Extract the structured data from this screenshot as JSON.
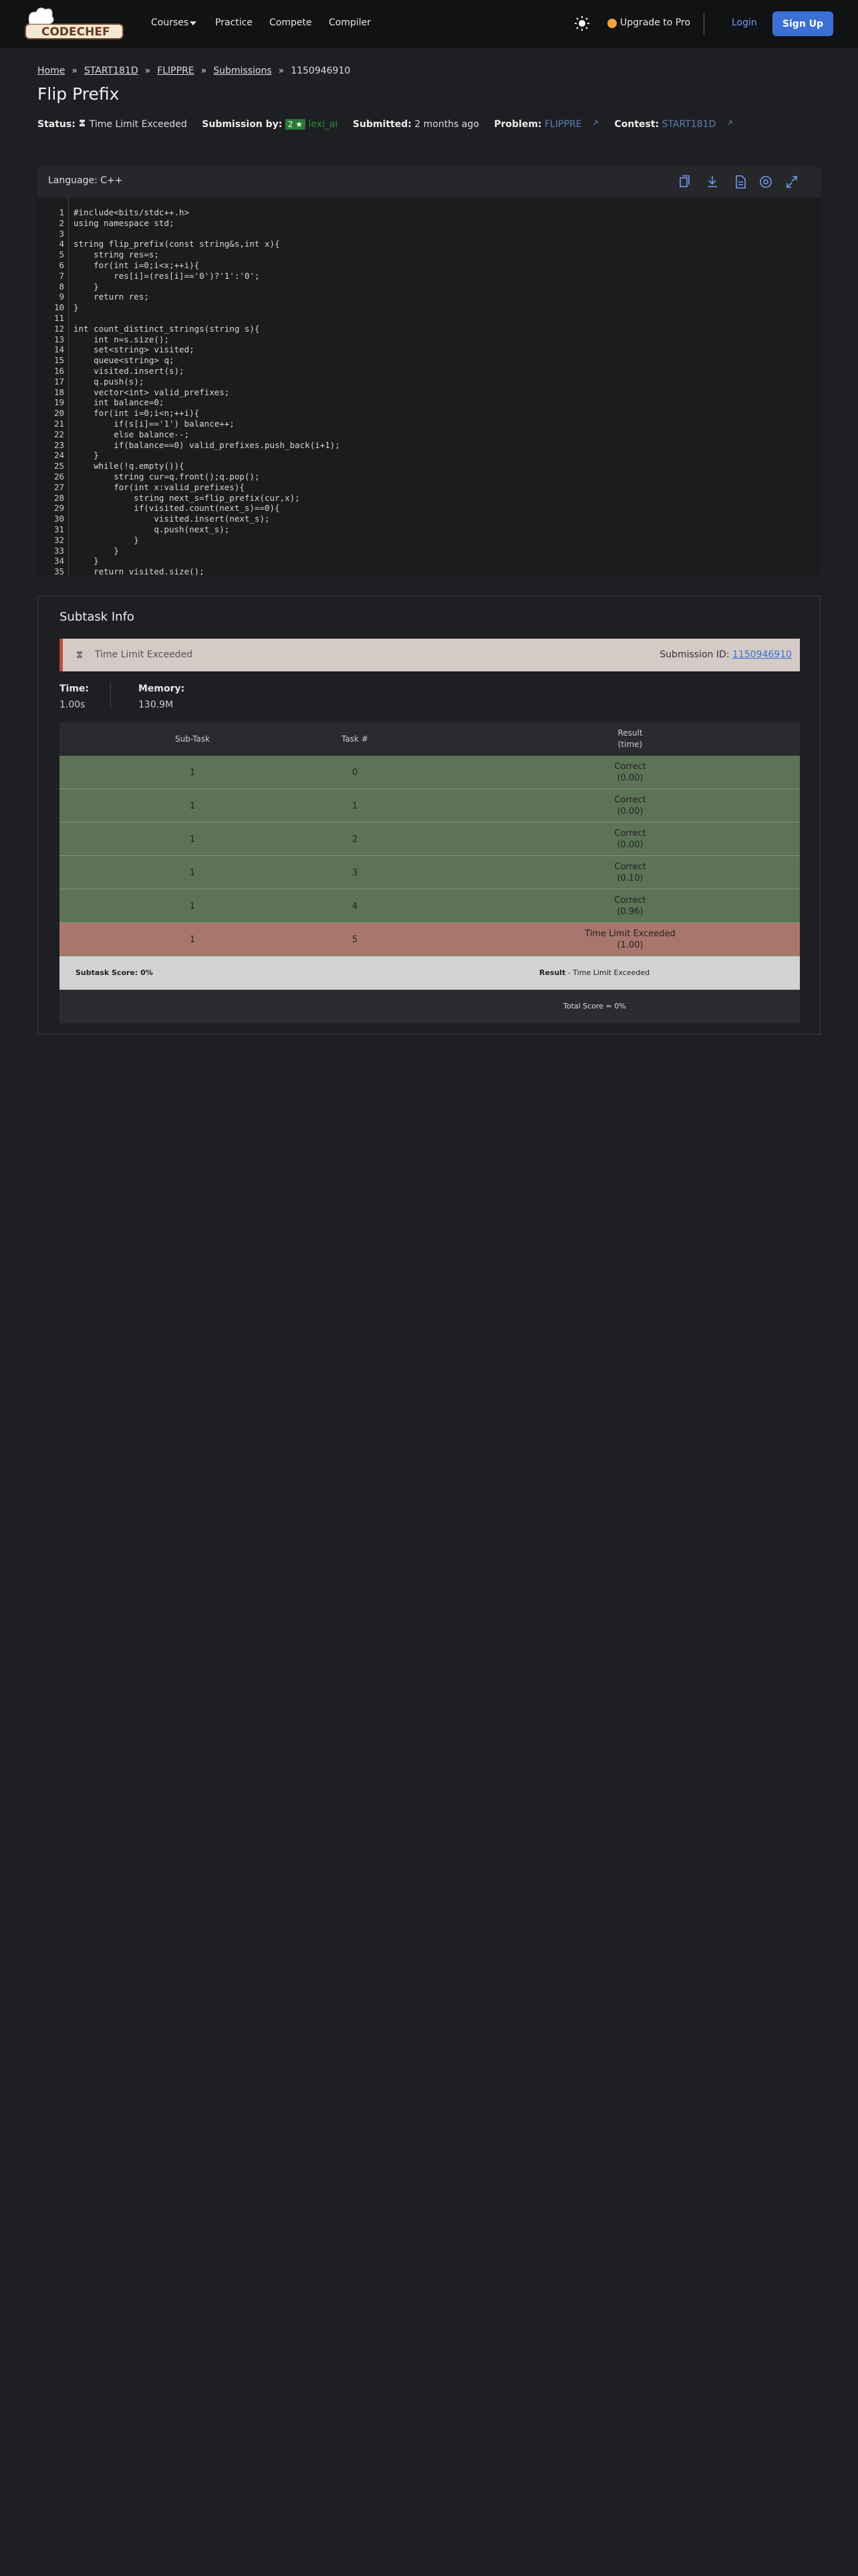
{
  "header": {
    "brand": "CODECHEF",
    "nav": [
      "Courses",
      "Practice",
      "Compete",
      "Compiler"
    ],
    "upgrade": "Upgrade to Pro",
    "login": "Login",
    "signup": "Sign Up"
  },
  "breadcrumb": {
    "items": [
      "Home",
      "START181D",
      "FLIPPRE",
      "Submissions",
      "1150946910"
    ],
    "separator": "»"
  },
  "title": "Flip Prefix",
  "meta": {
    "status_label": "Status:",
    "status": "Time Limit Exceeded",
    "by_label": "Submission by:",
    "rating": "2 ★",
    "user": "lexi_ai",
    "submitted_label": "Submitted:",
    "submitted": "2 months ago",
    "problem_label": "Problem:",
    "problem": "FLIPPRE",
    "contest_label": "Contest:",
    "contest": "START181D"
  },
  "code": {
    "language": "Language: C++",
    "lines": [
      {
        "n": "1",
        "text": "#include<bits/stdc++.h>"
      },
      {
        "n": "2",
        "text": "using namespace std;"
      },
      {
        "n": "3",
        "text": ""
      },
      {
        "n": "4",
        "text": "string flip_prefix(const string&s,int x){"
      },
      {
        "n": "5",
        "text": "    string res=s;"
      },
      {
        "n": "6",
        "text": "    for(int i=0;i<x;++i){"
      },
      {
        "n": "7",
        "text": "        res[i]=(res[i]=='0')?'1':'0';"
      },
      {
        "n": "8",
        "text": "    }"
      },
      {
        "n": "9",
        "text": "    return res;"
      },
      {
        "n": "10",
        "text": "}"
      },
      {
        "n": "11",
        "text": ""
      },
      {
        "n": "12",
        "text": "int count_distinct_strings(string s){"
      },
      {
        "n": "13",
        "text": "    int n=s.size();"
      },
      {
        "n": "14",
        "text": "    set<string> visited;"
      },
      {
        "n": "15",
        "text": "    queue<string> q;"
      },
      {
        "n": "16",
        "text": "    visited.insert(s);"
      },
      {
        "n": "17",
        "text": "    q.push(s);"
      },
      {
        "n": "18",
        "text": "    vector<int> valid_prefixes;"
      },
      {
        "n": "19",
        "text": "    int balance=0;"
      },
      {
        "n": "20",
        "text": "    for(int i=0;i<n;++i){"
      },
      {
        "n": "21",
        "text": "        if(s[i]=='1') balance++;"
      },
      {
        "n": "22",
        "text": "        else balance--;"
      },
      {
        "n": "23",
        "text": "        if(balance==0) valid_prefixes.push_back(i+1);"
      },
      {
        "n": "24",
        "text": "    }"
      },
      {
        "n": "25",
        "text": "    while(!q.empty()){"
      },
      {
        "n": "26",
        "text": "        string cur=q.front();q.pop();"
      },
      {
        "n": "27",
        "text": "        for(int x:valid_prefixes){"
      },
      {
        "n": "28",
        "text": "            string next_s=flip_prefix(cur,x);"
      },
      {
        "n": "29",
        "text": "            if(visited.count(next_s)==0){"
      },
      {
        "n": "30",
        "text": "                visited.insert(next_s);"
      },
      {
        "n": "31",
        "text": "                q.push(next_s);"
      },
      {
        "n": "32",
        "text": "            }"
      },
      {
        "n": "33",
        "text": "        }"
      },
      {
        "n": "34",
        "text": "    }"
      },
      {
        "n": "35",
        "text": "    return visited.size();"
      }
    ]
  },
  "subtask": {
    "title": "Subtask Info",
    "status": "Time Limit Exceeded",
    "submission_label": "Submission ID:",
    "submission_id": "1150946910",
    "time_label": "Time:",
    "time": "1.00s",
    "memory_label": "Memory:",
    "memory": "130.9M",
    "table": {
      "headers": [
        "Sub-Task",
        "Task #",
        "Result"
      ],
      "result_sub": "(time)",
      "rows": [
        {
          "subtask": "1",
          "task": "0",
          "result": "Correct",
          "time": "(0.00)"
        },
        {
          "subtask": "1",
          "task": "1",
          "result": "Correct",
          "time": "(0.00)"
        },
        {
          "subtask": "1",
          "task": "2",
          "result": "Correct",
          "time": "(0.00)"
        },
        {
          "subtask": "1",
          "task": "3",
          "result": "Correct",
          "time": "(0.10)"
        },
        {
          "subtask": "1",
          "task": "4",
          "result": "Correct",
          "time": "(0.96)"
        },
        {
          "subtask": "1",
          "task": "5",
          "result": "Time Limit Exceeded",
          "time": "(1.00)"
        }
      ],
      "score": "Subtask Score: 0%",
      "result_label": "Result",
      "result_text": " - Time Limit Exceeded",
      "total": "Total Score = 0%"
    }
  }
}
